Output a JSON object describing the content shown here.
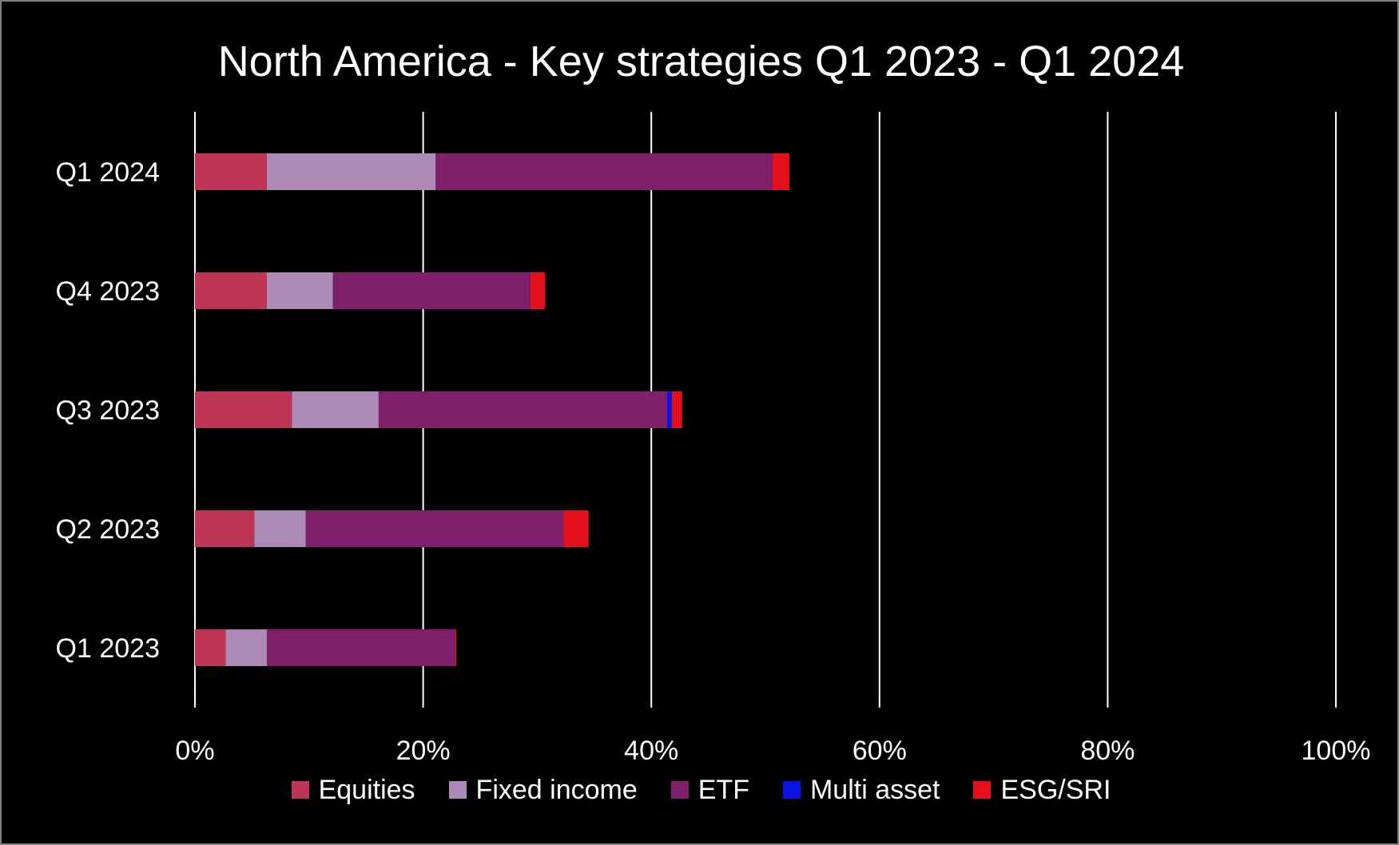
{
  "chart_data": {
    "type": "bar",
    "orientation": "horizontal",
    "stacked": true,
    "title": "North America - Key strategies Q1 2023 - Q1 2024",
    "xlabel": "",
    "ylabel": "",
    "categories": [
      "Q1 2024",
      "Q4 2023",
      "Q3 2023",
      "Q2 2023",
      "Q1 2023"
    ],
    "xlim": [
      0,
      100
    ],
    "x_ticks": [
      "0%",
      "20%",
      "40%",
      "60%",
      "80%",
      "100%"
    ],
    "grid": "vertical",
    "legend_position": "bottom",
    "background": "#000000",
    "text_color": "#ffffff",
    "gridline_color": "#ffffff",
    "series": [
      {
        "name": "Equities",
        "color": "#BE3455",
        "values": [
          6.3,
          6.3,
          8.5,
          5.2,
          2.7
        ]
      },
      {
        "name": "Fixed income",
        "color": "#AC8AB5",
        "values": [
          14.8,
          5.8,
          7.6,
          4.5,
          3.6
        ]
      },
      {
        "name": "ETF",
        "color": "#7E1F6A",
        "values": [
          29.5,
          17.3,
          25.3,
          22.6,
          16.5
        ]
      },
      {
        "name": "Multi asset",
        "color": "#0A14E6",
        "values": [
          0,
          0,
          0.4,
          0,
          0
        ]
      },
      {
        "name": "ESG/SRI",
        "color": "#E3101B",
        "values": [
          1.5,
          1.3,
          0.9,
          2.2,
          0.1
        ]
      }
    ]
  }
}
